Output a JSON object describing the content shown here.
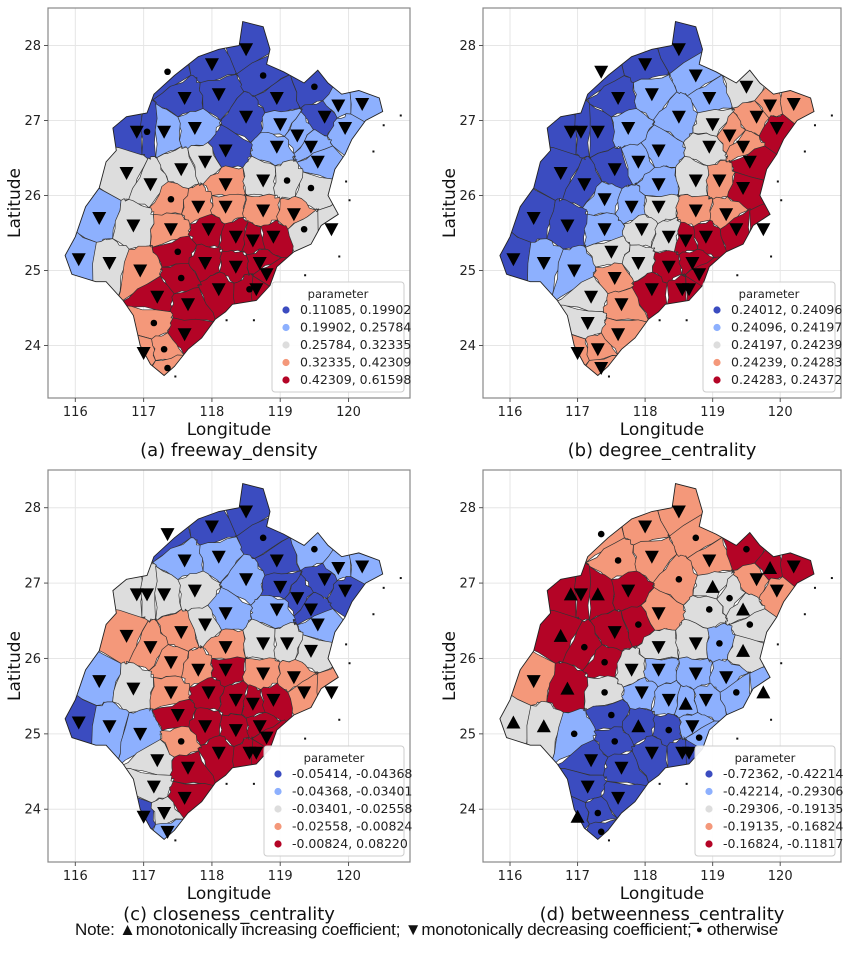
{
  "note": {
    "prefix": "Note: ",
    "triangle_up_glyph": "▲",
    "increasing_label": "monotonically increasing coefficient; ",
    "triangle_down_glyph": "▼",
    "decreasing_label": "monotonically decreasing coefficient; ",
    "dot_glyph": "●",
    "otherwise_label": " otherwise"
  },
  "chart_data": [
    {
      "type": "choropleth-map",
      "caption": "(a) freeway_density",
      "xlabel": "Longitude",
      "ylabel": "Latitude",
      "xticks": [
        "116",
        "117",
        "118",
        "119",
        "120"
      ],
      "yticks": [
        "24",
        "25",
        "26",
        "27",
        "28"
      ],
      "xlim": [
        115.6,
        120.9
      ],
      "ylim": [
        23.3,
        28.5
      ],
      "grid": true,
      "legend": {
        "title": "parameter",
        "placement": "lower-right",
        "entries": [
          "0.11085, 0.19902",
          "0.19902, 0.25784",
          "0.25784, 0.32335",
          "0.32335, 0.42309",
          "0.42309, 0.61598"
        ],
        "colors": [
          "#3b4cc0",
          "#8db0fe",
          "#dddddd",
          "#f4987a",
          "#b40426"
        ]
      },
      "regions_by_band": {
        "north": [
          0,
          0,
          0,
          0,
          0,
          0,
          0,
          0
        ],
        "northeast": [
          1,
          1,
          0,
          1,
          1,
          1,
          1
        ],
        "west_upper": [
          0,
          0,
          1,
          1,
          0
        ],
        "mid_west": [
          2,
          2,
          2,
          2,
          2
        ],
        "mid": [
          3,
          3,
          3,
          3,
          2,
          2,
          2
        ],
        "west_lower": [
          1,
          1,
          2,
          2
        ],
        "southeast": [
          4,
          4,
          4,
          4,
          4,
          4,
          3,
          3
        ],
        "south": [
          3,
          3,
          4,
          4,
          3
        ]
      }
    },
    {
      "type": "choropleth-map",
      "caption": "(b) degree_centrality",
      "xlabel": "Longitude",
      "ylabel": "Latitude",
      "xticks": [
        "116",
        "117",
        "118",
        "119",
        "120"
      ],
      "yticks": [
        "24",
        "25",
        "26",
        "27",
        "28"
      ],
      "xlim": [
        115.6,
        120.9
      ],
      "ylim": [
        23.3,
        28.5
      ],
      "grid": true,
      "legend": {
        "title": "parameter",
        "placement": "lower-right",
        "entries": [
          "0.24012, 0.24096",
          "0.24096, 0.24197",
          "0.24197, 0.24239",
          "0.24239, 0.24283",
          "0.24283, 0.24372"
        ],
        "colors": [
          "#3b4cc0",
          "#8db0fe",
          "#dddddd",
          "#f4987a",
          "#b40426"
        ]
      }
    },
    {
      "type": "choropleth-map",
      "caption": "(c) closeness_centrality",
      "xlabel": "Longitude",
      "ylabel": "Latitude",
      "xticks": [
        "116",
        "117",
        "118",
        "119",
        "120"
      ],
      "yticks": [
        "24",
        "25",
        "26",
        "27",
        "28"
      ],
      "xlim": [
        115.6,
        120.9
      ],
      "ylim": [
        23.3,
        28.5
      ],
      "grid": true,
      "legend": {
        "title": "parameter",
        "placement": "lower-right",
        "entries": [
          "-0.05414, -0.04368",
          "-0.04368, -0.03401",
          "-0.03401, -0.02558",
          "-0.02558, -0.00824",
          "-0.00824,  0.08220"
        ],
        "colors": [
          "#3b4cc0",
          "#8db0fe",
          "#dddddd",
          "#f4987a",
          "#b40426"
        ]
      }
    },
    {
      "type": "choropleth-map",
      "caption": "(d) betweenness_centrality",
      "xlabel": "Longitude",
      "ylabel": "Latitude",
      "xticks": [
        "116",
        "117",
        "118",
        "119",
        "120"
      ],
      "yticks": [
        "24",
        "25",
        "26",
        "27",
        "28"
      ],
      "xlim": [
        115.6,
        120.9
      ],
      "ylim": [
        23.3,
        28.5
      ],
      "grid": true,
      "legend": {
        "title": "parameter",
        "placement": "lower-right",
        "entries": [
          "-0.72362, -0.42214",
          "-0.42214, -0.29306",
          "-0.29306, -0.19135",
          "-0.19135, -0.16824",
          "-0.16824, -0.11817"
        ],
        "colors": [
          "#3b4cc0",
          "#8db0fe",
          "#dddddd",
          "#f4987a",
          "#b40426"
        ]
      }
    }
  ],
  "regions": [
    {
      "lon": 118.5,
      "lat": 27.95,
      "cls": [
        0,
        0,
        0,
        3
      ],
      "m": [
        "v",
        "v",
        "v",
        "v"
      ]
    },
    {
      "lon": 118.0,
      "lat": 27.75,
      "cls": [
        0,
        0,
        0,
        3
      ],
      "m": [
        "v",
        "v",
        "v",
        "v"
      ]
    },
    {
      "lon": 117.35,
      "lat": 27.65,
      "cls": [
        0,
        0,
        0,
        3
      ],
      "m": [
        "o",
        "v",
        "v",
        "o"
      ]
    },
    {
      "lon": 118.75,
      "lat": 27.6,
      "cls": [
        0,
        1,
        0,
        3
      ],
      "m": [
        "o",
        "v",
        "o",
        "o"
      ]
    },
    {
      "lon": 117.6,
      "lat": 27.3,
      "cls": [
        0,
        0,
        1,
        3
      ],
      "m": [
        "v",
        "v",
        "v",
        "o"
      ]
    },
    {
      "lon": 118.1,
      "lat": 27.35,
      "cls": [
        0,
        1,
        1,
        3
      ],
      "m": [
        "v",
        "v",
        "v",
        "v"
      ]
    },
    {
      "lon": 118.95,
      "lat": 27.3,
      "cls": [
        0,
        1,
        0,
        3
      ],
      "m": [
        "v",
        "v",
        "v",
        "v"
      ]
    },
    {
      "lon": 119.5,
      "lat": 27.45,
      "cls": [
        0,
        2,
        1,
        4
      ],
      "m": [
        "o",
        "v",
        "o",
        "o"
      ]
    },
    {
      "lon": 118.5,
      "lat": 27.05,
      "cls": [
        0,
        1,
        1,
        3
      ],
      "m": [
        "v",
        "v",
        "v",
        "o"
      ]
    },
    {
      "lon": 119.85,
      "lat": 27.2,
      "cls": [
        1,
        3,
        1,
        4
      ],
      "m": [
        "v",
        "v",
        "v",
        "^"
      ]
    },
    {
      "lon": 120.2,
      "lat": 27.22,
      "cls": [
        1,
        3,
        1,
        4
      ],
      "m": [
        "v",
        "v",
        "v",
        "v"
      ]
    },
    {
      "lon": 119.65,
      "lat": 27.05,
      "cls": [
        0,
        3,
        0,
        3
      ],
      "m": [
        "v",
        "v",
        "v",
        "v"
      ]
    },
    {
      "lon": 119.95,
      "lat": 26.9,
      "cls": [
        1,
        4,
        0,
        3
      ],
      "m": [
        "v",
        "v",
        "v",
        "v"
      ]
    },
    {
      "lon": 119.0,
      "lat": 26.95,
      "cls": [
        1,
        2,
        0,
        2
      ],
      "m": [
        "v",
        "v",
        "v",
        "^"
      ]
    },
    {
      "lon": 119.25,
      "lat": 26.8,
      "cls": [
        1,
        3,
        0,
        2
      ],
      "m": [
        "v",
        "v",
        "v",
        "o"
      ]
    },
    {
      "lon": 119.45,
      "lat": 26.65,
      "cls": [
        1,
        3,
        0,
        2
      ],
      "m": [
        "v",
        "v",
        "v",
        "^"
      ]
    },
    {
      "lon": 119.55,
      "lat": 26.45,
      "cls": [
        1,
        4,
        1,
        2
      ],
      "m": [
        "v",
        "v",
        "v",
        "o"
      ]
    },
    {
      "lon": 119.45,
      "lat": 26.1,
      "cls": [
        2,
        4,
        2,
        2
      ],
      "m": [
        "o",
        "v",
        "v",
        "^"
      ]
    },
    {
      "lon": 118.95,
      "lat": 26.65,
      "cls": [
        1,
        2,
        1,
        2
      ],
      "m": [
        "v",
        "v",
        "v",
        "o"
      ]
    },
    {
      "lon": 118.2,
      "lat": 26.6,
      "cls": [
        0,
        1,
        1,
        3
      ],
      "m": [
        "v",
        "v",
        "v",
        "v"
      ]
    },
    {
      "lon": 117.75,
      "lat": 26.9,
      "cls": [
        1,
        1,
        2,
        4
      ],
      "m": [
        "v",
        "v",
        "v",
        "v"
      ]
    },
    {
      "lon": 117.3,
      "lat": 26.85,
      "cls": [
        1,
        0,
        2,
        4
      ],
      "m": [
        "v",
        "v",
        "v",
        "^"
      ]
    },
    {
      "lon": 116.9,
      "lat": 26.85,
      "cls": [
        0,
        0,
        2,
        4
      ],
      "m": [
        "v",
        "v",
        "v",
        "^"
      ]
    },
    {
      "lon": 117.05,
      "lat": 26.85,
      "cls": [
        0,
        0,
        2,
        4
      ],
      "m": [
        "o",
        "v",
        "v",
        "v"
      ]
    },
    {
      "lon": 117.55,
      "lat": 26.35,
      "cls": [
        2,
        0,
        3,
        4
      ],
      "m": [
        "v",
        "v",
        "v",
        "v"
      ]
    },
    {
      "lon": 117.9,
      "lat": 26.45,
      "cls": [
        2,
        1,
        2,
        4
      ],
      "m": [
        "v",
        "v",
        "v",
        "o"
      ]
    },
    {
      "lon": 116.75,
      "lat": 26.3,
      "cls": [
        2,
        0,
        3,
        4
      ],
      "m": [
        "v",
        "v",
        "v",
        "^"
      ]
    },
    {
      "lon": 117.1,
      "lat": 26.15,
      "cls": [
        2,
        0,
        3,
        4
      ],
      "m": [
        "v",
        "v",
        "v",
        "o"
      ]
    },
    {
      "lon": 117.4,
      "lat": 25.95,
      "cls": [
        3,
        1,
        3,
        4
      ],
      "m": [
        "o",
        "v",
        "v",
        "o"
      ]
    },
    {
      "lon": 118.2,
      "lat": 26.15,
      "cls": [
        3,
        1,
        3,
        2
      ],
      "m": [
        "v",
        "v",
        "v",
        "v"
      ]
    },
    {
      "lon": 118.75,
      "lat": 26.2,
      "cls": [
        2,
        2,
        2,
        2
      ],
      "m": [
        "v",
        "v",
        "v",
        "v"
      ]
    },
    {
      "lon": 119.1,
      "lat": 26.2,
      "cls": [
        2,
        3,
        2,
        1
      ],
      "m": [
        "o",
        "v",
        "v",
        "o"
      ]
    },
    {
      "lon": 117.8,
      "lat": 25.85,
      "cls": [
        3,
        1,
        3,
        2
      ],
      "m": [
        "v",
        "v",
        "v",
        "v"
      ]
    },
    {
      "lon": 118.2,
      "lat": 25.85,
      "cls": [
        3,
        2,
        4,
        1
      ],
      "m": [
        "v",
        "v",
        "v",
        "v"
      ]
    },
    {
      "lon": 118.75,
      "lat": 25.8,
      "cls": [
        3,
        3,
        3,
        1
      ],
      "m": [
        "v",
        "v",
        "v",
        "v"
      ]
    },
    {
      "lon": 119.2,
      "lat": 25.75,
      "cls": [
        3,
        3,
        3,
        1
      ],
      "m": [
        "v",
        "v",
        "v",
        "v"
      ]
    },
    {
      "lon": 119.35,
      "lat": 25.55,
      "cls": [
        2,
        4,
        3,
        1
      ],
      "m": [
        "o",
        "v",
        "v",
        "o"
      ]
    },
    {
      "lon": 119.75,
      "lat": 25.55,
      "cls": [
        2,
        4,
        3,
        1
      ],
      "m": [
        "v",
        "v",
        "v",
        "^"
      ]
    },
    {
      "lon": 116.35,
      "lat": 25.7,
      "cls": [
        1,
        0,
        1,
        3
      ],
      "m": [
        "v",
        "v",
        "v",
        "v"
      ]
    },
    {
      "lon": 116.85,
      "lat": 25.6,
      "cls": [
        2,
        0,
        2,
        4
      ],
      "m": [
        "v",
        "v",
        "v",
        "^"
      ]
    },
    {
      "lon": 117.4,
      "lat": 25.55,
      "cls": [
        3,
        1,
        3,
        2
      ],
      "m": [
        "v",
        "v",
        "v",
        "o"
      ]
    },
    {
      "lon": 117.95,
      "lat": 25.55,
      "cls": [
        4,
        2,
        4,
        1
      ],
      "m": [
        "v",
        "v",
        "v",
        "v"
      ]
    },
    {
      "lon": 118.35,
      "lat": 25.45,
      "cls": [
        4,
        2,
        4,
        1
      ],
      "m": [
        "v",
        "v",
        "v",
        "v"
      ]
    },
    {
      "lon": 118.6,
      "lat": 25.4,
      "cls": [
        4,
        4,
        4,
        1
      ],
      "m": [
        "v",
        "v",
        "v",
        "^"
      ]
    },
    {
      "lon": 118.9,
      "lat": 25.45,
      "cls": [
        4,
        4,
        4,
        1
      ],
      "m": [
        "v",
        "v",
        "v",
        "v"
      ]
    },
    {
      "lon": 116.05,
      "lat": 25.15,
      "cls": [
        1,
        0,
        0,
        2
      ],
      "m": [
        "v",
        "v",
        "v",
        "^"
      ]
    },
    {
      "lon": 116.5,
      "lat": 25.1,
      "cls": [
        2,
        1,
        1,
        2
      ],
      "m": [
        "v",
        "v",
        "v",
        "^"
      ]
    },
    {
      "lon": 116.95,
      "lat": 25.0,
      "cls": [
        3,
        1,
        1,
        1
      ],
      "m": [
        "v",
        "v",
        "v",
        "o"
      ]
    },
    {
      "lon": 117.5,
      "lat": 25.25,
      "cls": [
        4,
        2,
        4,
        0
      ],
      "m": [
        "o",
        "v",
        "v",
        "o"
      ]
    },
    {
      "lon": 117.9,
      "lat": 25.1,
      "cls": [
        4,
        2,
        4,
        0
      ],
      "m": [
        "v",
        "v",
        "v",
        "^"
      ]
    },
    {
      "lon": 118.35,
      "lat": 25.05,
      "cls": [
        4,
        4,
        4,
        0
      ],
      "m": [
        "v",
        "v",
        "v",
        "o"
      ]
    },
    {
      "lon": 118.7,
      "lat": 25.1,
      "cls": [
        4,
        4,
        4,
        1
      ],
      "m": [
        "v",
        "v",
        "v",
        "v"
      ]
    },
    {
      "lon": 118.8,
      "lat": 24.95,
      "cls": [
        4,
        4,
        4,
        1
      ],
      "m": [
        "v",
        "v",
        "v",
        "o"
      ]
    },
    {
      "lon": 117.2,
      "lat": 24.65,
      "cls": [
        4,
        2,
        2,
        0
      ],
      "m": [
        "v",
        "v",
        "v",
        "v"
      ]
    },
    {
      "lon": 117.55,
      "lat": 24.9,
      "cls": [
        4,
        3,
        3,
        0
      ],
      "m": [
        "o",
        "v",
        "o",
        "o"
      ]
    },
    {
      "lon": 118.1,
      "lat": 24.75,
      "cls": [
        4,
        4,
        4,
        0
      ],
      "m": [
        "v",
        "v",
        "v",
        "v"
      ]
    },
    {
      "lon": 118.55,
      "lat": 24.75,
      "cls": [
        4,
        4,
        4,
        0
      ],
      "m": [
        "o",
        "v",
        "v",
        "v"
      ]
    },
    {
      "lon": 118.65,
      "lat": 24.75,
      "cls": [
        4,
        4,
        4,
        0
      ],
      "m": [
        "v",
        "v",
        "v",
        "v"
      ]
    },
    {
      "lon": 117.65,
      "lat": 24.55,
      "cls": [
        4,
        3,
        4,
        0
      ],
      "m": [
        "v",
        "v",
        "v",
        "v"
      ]
    },
    {
      "lon": 117.15,
      "lat": 24.3,
      "cls": [
        3,
        2,
        2,
        0
      ],
      "m": [
        "o",
        "v",
        "v",
        "v"
      ]
    },
    {
      "lon": 117.6,
      "lat": 24.15,
      "cls": [
        4,
        3,
        4,
        0
      ],
      "m": [
        "v",
        "v",
        "v",
        "v"
      ]
    },
    {
      "lon": 117.0,
      "lat": 23.9,
      "cls": [
        3,
        3,
        0,
        0
      ],
      "m": [
        "v",
        "v",
        "v",
        "^"
      ]
    },
    {
      "lon": 117.3,
      "lat": 23.95,
      "cls": [
        3,
        3,
        2,
        0
      ],
      "m": [
        "o",
        "v",
        "v",
        "o"
      ]
    },
    {
      "lon": 117.35,
      "lat": 23.7,
      "cls": [
        3,
        3,
        1,
        0
      ],
      "m": [
        "o",
        "v",
        "v",
        "o"
      ]
    }
  ]
}
